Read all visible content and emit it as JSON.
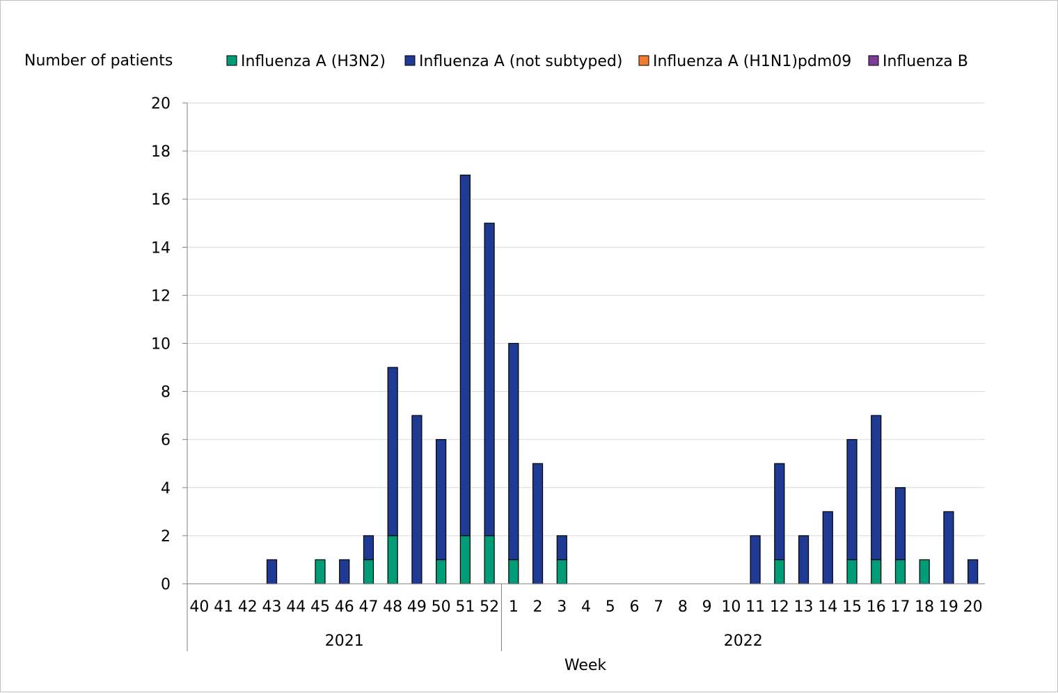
{
  "chart_data": {
    "type": "bar",
    "stacked": true,
    "ylabel": "Number of patients",
    "xlabel": "Week",
    "ylim": [
      0,
      20
    ],
    "yticks": [
      0,
      2,
      4,
      6,
      8,
      10,
      12,
      14,
      16,
      18,
      20
    ],
    "grid": true,
    "legend_position": "top",
    "categories": [
      "40",
      "41",
      "42",
      "43",
      "44",
      "45",
      "46",
      "47",
      "48",
      "49",
      "50",
      "51",
      "52",
      "1",
      "2",
      "3",
      "4",
      "5",
      "6",
      "7",
      "8",
      "9",
      "10",
      "11",
      "12",
      "13",
      "14",
      "15",
      "16",
      "17",
      "18",
      "19",
      "20"
    ],
    "year_groups": [
      {
        "label": "2021",
        "count": 13
      },
      {
        "label": "2022",
        "count": 20
      }
    ],
    "series": [
      {
        "name": "Influenza A (H3N2)",
        "color": "#009b77",
        "values": [
          0,
          0,
          0,
          0,
          0,
          1,
          0,
          1,
          2,
          0,
          1,
          2,
          2,
          1,
          0,
          1,
          0,
          0,
          0,
          0,
          0,
          0,
          0,
          0,
          1,
          0,
          0,
          1,
          1,
          1,
          1,
          0,
          0
        ]
      },
      {
        "name": "Influenza A (not subtyped)",
        "color": "#1f3a93",
        "values": [
          0,
          0,
          0,
          1,
          0,
          0,
          1,
          1,
          7,
          7,
          5,
          15,
          13,
          9,
          5,
          1,
          0,
          0,
          0,
          0,
          0,
          0,
          0,
          2,
          4,
          2,
          3,
          5,
          6,
          3,
          0,
          3,
          1
        ]
      },
      {
        "name": "Influenza A (H1N1)pdm09",
        "color": "#f07d2e",
        "values": [
          0,
          0,
          0,
          0,
          0,
          0,
          0,
          0,
          0,
          0,
          0,
          0,
          0,
          0,
          0,
          0,
          0,
          0,
          0,
          0,
          0,
          0,
          0,
          0,
          0,
          0,
          0,
          0,
          0,
          0,
          0,
          0,
          0
        ]
      },
      {
        "name": "Influenza B",
        "color": "#7d3c98",
        "values": [
          0,
          0,
          0,
          0,
          0,
          0,
          0,
          0,
          0,
          0,
          0,
          0,
          0,
          0,
          0,
          0,
          0,
          0,
          0,
          0,
          0,
          0,
          0,
          0,
          0,
          0,
          0,
          0,
          0,
          0,
          0,
          0,
          0
        ]
      }
    ]
  }
}
